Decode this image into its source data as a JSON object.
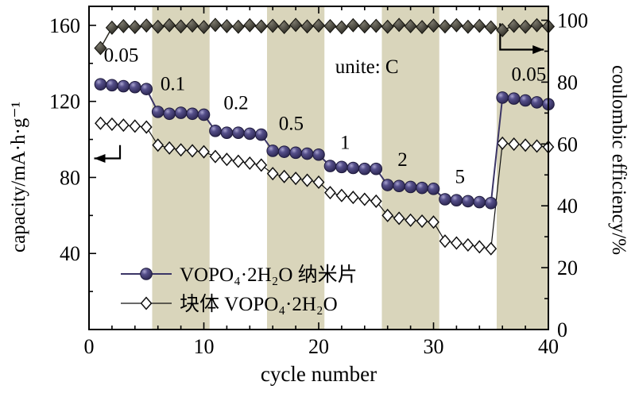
{
  "figure": {
    "background": "#ffffff",
    "band_color": "#d9d5bb",
    "frame_color": "#000000"
  },
  "chart_data": {
    "type": "scatter",
    "xlabel": "cycle number",
    "ylabel_left": "capacity/mA·h·g⁻¹",
    "ylabel_right": "coulombic efficiency/%",
    "x_range": [
      0,
      40
    ],
    "y_left_range": [
      0,
      170
    ],
    "y_right_range": [
      0,
      104.5
    ],
    "x_ticks": [
      0,
      10,
      20,
      30,
      40
    ],
    "y_left_ticks": [
      40,
      80,
      120,
      160
    ],
    "y_right_ticks": [
      0,
      20,
      40,
      60,
      80,
      100
    ],
    "x_minor_step": 2,
    "y_left_minor_step": 20,
    "y_right_minor_step": 10,
    "grid": false,
    "bands": [
      [
        5.5,
        10.5
      ],
      [
        15.5,
        20.5
      ],
      [
        25.5,
        30.5
      ],
      [
        35.5,
        40
      ]
    ],
    "x": [
      1,
      2,
      3,
      4,
      5,
      6,
      7,
      8,
      9,
      10,
      11,
      12,
      13,
      14,
      15,
      16,
      17,
      18,
      19,
      20,
      21,
      22,
      23,
      24,
      25,
      26,
      27,
      28,
      29,
      30,
      31,
      32,
      33,
      34,
      35,
      36,
      37,
      38,
      39,
      40
    ],
    "series": [
      {
        "id": "bulk",
        "name": "块体 VOPO₄·2H₂O",
        "axis": "left",
        "marker": "open-diamond",
        "color": "#111111",
        "line_width": 1.2,
        "values": [
          108.5,
          108,
          107.5,
          107,
          106.5,
          97,
          95.5,
          94.5,
          94,
          93.5,
          91,
          89.5,
          88.5,
          87.5,
          86.5,
          82,
          80.5,
          79.5,
          78.5,
          77.5,
          72,
          70.5,
          69.5,
          68.5,
          67.5,
          60,
          58.5,
          57.5,
          57,
          56.5,
          46.5,
          45.5,
          44.5,
          43.5,
          42.5,
          98,
          97.5,
          97,
          96.5,
          96
        ]
      },
      {
        "id": "nanosheet",
        "name": "VOPO₄·2H₂O 纳米片",
        "axis": "left",
        "marker": "sphere",
        "color": "#3b3566",
        "line_width": 2,
        "values": [
          129,
          128.5,
          128,
          127.5,
          126.5,
          114.5,
          113.5,
          114,
          113.5,
          113,
          104.5,
          103.5,
          103.5,
          103,
          102.5,
          94,
          93.5,
          93,
          92.5,
          92,
          86,
          85.5,
          85,
          84.5,
          84.5,
          76,
          75.5,
          75,
          74.5,
          74,
          68.5,
          68,
          67.5,
          67,
          66.5,
          122,
          121.5,
          120.5,
          119.5,
          118.5
        ]
      },
      {
        "id": "efficiency",
        "name": "coulombic efficiency",
        "axis": "right",
        "marker": "filled-diamond",
        "color": "#2e2c24",
        "line_width": 1.5,
        "values": [
          91,
          97.6,
          98.1,
          97.8,
          98.3,
          97.9,
          98.4,
          98,
          98.3,
          97.8,
          98.5,
          98.1,
          97.9,
          98.4,
          98,
          98.2,
          97.8,
          98.5,
          98,
          98.3,
          98.1,
          97.7,
          98.4,
          98,
          98.2,
          97.9,
          98.5,
          98.1,
          97.8,
          98.3,
          98,
          98.4,
          97.9,
          98.2,
          97.7,
          96.8,
          98.2,
          97.9,
          98.4,
          98
        ]
      }
    ],
    "annotations": [
      {
        "text": "0.05",
        "x": 2.8,
        "y": 141
      },
      {
        "text": "0.1",
        "x": 7.3,
        "y": 126
      },
      {
        "text": "0.2",
        "x": 12.8,
        "y": 116
      },
      {
        "text": "0.5",
        "x": 17.6,
        "y": 105
      },
      {
        "text": "1",
        "x": 22.3,
        "y": 95
      },
      {
        "text": "2",
        "x": 27.3,
        "y": 86
      },
      {
        "text": "5",
        "x": 32.3,
        "y": 77
      },
      {
        "text": "0.05",
        "x": 38.3,
        "y": 131
      },
      {
        "text": "unite: C",
        "x": 24.2,
        "y": 135
      }
    ],
    "arrows": [
      {
        "axis": "left",
        "points": [
          [
            2.7,
            97
          ],
          [
            2.7,
            90
          ],
          [
            0.45,
            90
          ]
        ]
      },
      {
        "axis": "right",
        "points": [
          [
            35.8,
            99
          ],
          [
            35.8,
            90.5
          ],
          [
            39.6,
            90.5
          ]
        ]
      }
    ]
  },
  "legend": {
    "entries": [
      {
        "label": "VOPO₄·2H₂O 纳米片",
        "marker": "sphere",
        "color": "#3b3566"
      },
      {
        "label": "块体 VOPO₄·2H₂O",
        "marker": "open-diamond",
        "color": "#111111"
      }
    ]
  }
}
